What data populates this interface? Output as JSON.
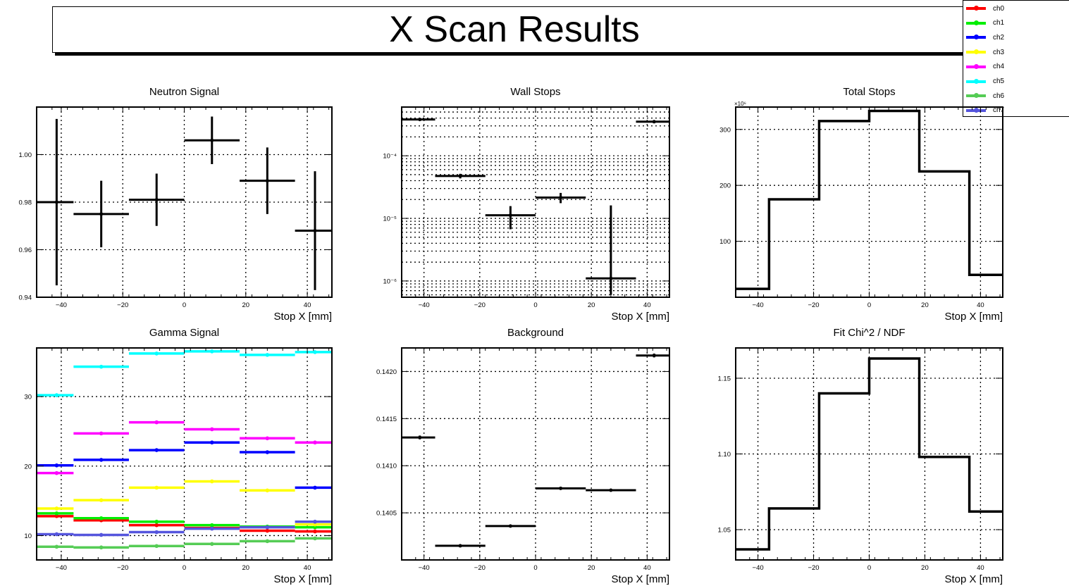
{
  "page_title": "X Scan Results",
  "legend": [
    {
      "label": "ch0",
      "color": "#ff0000"
    },
    {
      "label": "ch1",
      "color": "#00ee00"
    },
    {
      "label": "ch2",
      "color": "#0000ff"
    },
    {
      "label": "ch3",
      "color": "#ffff00"
    },
    {
      "label": "ch4",
      "color": "#ff00ff"
    },
    {
      "label": "ch5",
      "color": "#00ffff"
    },
    {
      "label": "ch6",
      "color": "#55cc55"
    },
    {
      "label": "ch7",
      "color": "#5555dd"
    }
  ],
  "chart_data": [
    {
      "type": "scatter",
      "title": "Neutron Signal",
      "xlabel": "Stop X [mm]",
      "ylabel": "",
      "xlim": [
        -48,
        48
      ],
      "ylim": [
        0.94,
        1.02
      ],
      "yticks": [
        0.94,
        0.96,
        0.98,
        1.0
      ],
      "yticklabels": [
        "0.94",
        "0.96",
        "0.98",
        "1.00"
      ],
      "xticks": [
        -40,
        -20,
        0,
        20,
        40
      ],
      "xticklabels": [
        "−40",
        "−20",
        "0",
        "20",
        "40"
      ],
      "bins": [
        [
          -48,
          -36
        ],
        [
          -36,
          -18
        ],
        [
          -18,
          0
        ],
        [
          0,
          18
        ],
        [
          18,
          36
        ],
        [
          36,
          48
        ]
      ],
      "series": [
        {
          "color": "#000000",
          "x": [
            -41.5,
            -27,
            -9,
            9,
            27,
            42.5
          ],
          "y": [
            0.98,
            0.975,
            0.981,
            1.006,
            0.989,
            0.968
          ],
          "err": [
            0.035,
            0.014,
            0.011,
            0.01,
            0.014,
            0.025
          ]
        }
      ]
    },
    {
      "type": "scatter",
      "title": "Wall Stops",
      "xlabel": "Stop X [mm]",
      "ylabel": "",
      "log": true,
      "xlim": [
        -48,
        48
      ],
      "ylim": [
        5.5e-07,
        0.0006
      ],
      "yticks": [
        1e-06,
        1e-05,
        0.0001
      ],
      "yticklabels": [
        "10⁻⁶",
        "10⁻⁵",
        "10⁻⁴"
      ],
      "xticks": [
        -40,
        -20,
        0,
        20,
        40
      ],
      "xticklabels": [
        "−40",
        "−20",
        "0",
        "20",
        "40"
      ],
      "bins": [
        [
          -48,
          -36
        ],
        [
          -36,
          -18
        ],
        [
          -18,
          0
        ],
        [
          0,
          18
        ],
        [
          18,
          36
        ],
        [
          36,
          48
        ]
      ],
      "series": [
        {
          "color": "#000000",
          "x": [
            -41.5,
            -27,
            -9,
            9,
            27,
            42.5
          ],
          "y": [
            0.00038,
            4.75e-05,
            1.12e-05,
            2.15e-05,
            1.1e-06,
            0.00035
          ],
          "errlo": [
            1e-05,
            4e-06,
            4.5e-06,
            4e-06,
            5e-07,
            1e-05
          ],
          "errhi": [
            1e-05,
            4e-06,
            4.5e-06,
            4e-06,
            1.5e-05,
            1e-05
          ]
        }
      ]
    },
    {
      "type": "line",
      "title": "Total Stops",
      "xlabel": "Stop X [mm]",
      "ylabel": "",
      "multiplier": "×10⁶",
      "xlim": [
        -48,
        48
      ],
      "ylim": [
        0,
        340
      ],
      "yticks": [
        100,
        200,
        300
      ],
      "yticklabels": [
        "100",
        "200",
        "300"
      ],
      "xticks": [
        -40,
        -20,
        0,
        20,
        40
      ],
      "xticklabels": [
        "−40",
        "−20",
        "0",
        "20",
        "40"
      ],
      "bins": [
        [
          -48,
          -36
        ],
        [
          -36,
          -18
        ],
        [
          -18,
          0
        ],
        [
          0,
          18
        ],
        [
          18,
          36
        ],
        [
          36,
          48
        ]
      ],
      "series": [
        {
          "color": "#000000",
          "values": [
            15,
            175,
            315,
            333,
            225,
            40
          ]
        }
      ]
    },
    {
      "type": "scatter",
      "title": "Gamma Signal",
      "xlabel": "Stop X [mm]",
      "ylabel": "",
      "xlim": [
        -48,
        48
      ],
      "ylim": [
        6.5,
        37
      ],
      "yticks": [
        10,
        20,
        30
      ],
      "yticklabels": [
        "10",
        "20",
        "30"
      ],
      "xticks": [
        -40,
        -20,
        0,
        20,
        40
      ],
      "xticklabels": [
        "−40",
        "−20",
        "0",
        "20",
        "40"
      ],
      "bins": [
        [
          -48,
          -36
        ],
        [
          -36,
          -18
        ],
        [
          -18,
          0
        ],
        [
          0,
          18
        ],
        [
          18,
          36
        ],
        [
          36,
          48
        ]
      ],
      "series": [
        {
          "name": "ch0",
          "color": "#ff0000",
          "x": [
            -41.5,
            -27,
            -9,
            9,
            27,
            42.5
          ],
          "y": [
            12.8,
            12.2,
            11.5,
            11.1,
            10.7,
            10.6
          ]
        },
        {
          "name": "ch1",
          "color": "#00ee00",
          "x": [
            -41.5,
            -27,
            -9,
            9,
            27,
            42.5
          ],
          "y": [
            13.2,
            12.5,
            12.0,
            11.5,
            11.3,
            11.2
          ]
        },
        {
          "name": "ch2",
          "color": "#0000ff",
          "x": [
            -41.5,
            -27,
            -9,
            9,
            27,
            42.5
          ],
          "y": [
            20.1,
            20.9,
            22.3,
            23.4,
            22.0,
            16.9
          ]
        },
        {
          "name": "ch3",
          "color": "#ffff00",
          "x": [
            -41.5,
            -27,
            -9,
            9,
            27,
            42.5
          ],
          "y": [
            13.9,
            15.1,
            16.9,
            17.8,
            16.5,
            11.6
          ]
        },
        {
          "name": "ch4",
          "color": "#ff00ff",
          "x": [
            -41.5,
            -27,
            -9,
            9,
            27,
            42.5
          ],
          "y": [
            19.0,
            24.7,
            26.3,
            25.3,
            24.0,
            23.4
          ]
        },
        {
          "name": "ch5",
          "color": "#00ffff",
          "x": [
            -41.5,
            -27,
            -9,
            9,
            27,
            42.5
          ],
          "y": [
            30.2,
            34.3,
            36.2,
            36.5,
            36.0,
            36.4
          ]
        },
        {
          "name": "ch6",
          "color": "#55cc55",
          "x": [
            -41.5,
            -27,
            -9,
            9,
            27,
            42.5
          ],
          "y": [
            8.4,
            8.3,
            8.5,
            8.8,
            9.2,
            9.6
          ]
        },
        {
          "name": "ch7",
          "color": "#5555dd",
          "x": [
            -41.5,
            -27,
            -9,
            9,
            27,
            42.5
          ],
          "y": [
            10.2,
            10.1,
            10.5,
            11.0,
            11.2,
            12.0
          ]
        }
      ]
    },
    {
      "type": "scatter",
      "title": "Background",
      "xlabel": "Stop X [mm]",
      "ylabel": "",
      "xlim": [
        -48,
        48
      ],
      "ylim": [
        0.14,
        0.14225
      ],
      "yticks": [
        0.1405,
        0.141,
        0.1415,
        0.142
      ],
      "yticklabels": [
        "0.1405",
        "0.1410",
        "0.1415",
        "0.1420"
      ],
      "xticks": [
        -40,
        -20,
        0,
        20,
        40
      ],
      "xticklabels": [
        "−40",
        "−20",
        "0",
        "20",
        "40"
      ],
      "bins": [
        [
          -48,
          -36
        ],
        [
          -36,
          -18
        ],
        [
          -18,
          0
        ],
        [
          0,
          18
        ],
        [
          18,
          36
        ],
        [
          36,
          48
        ]
      ],
      "series": [
        {
          "color": "#000000",
          "x": [
            -41.5,
            -27,
            -9,
            9,
            27,
            42.5
          ],
          "y": [
            0.1413,
            0.14015,
            0.14036,
            0.14076,
            0.14074,
            0.14217
          ],
          "err": [
            2e-05,
            5e-06,
            5e-06,
            5e-06,
            5e-06,
            2e-05
          ]
        }
      ]
    },
    {
      "type": "line",
      "title": "Fit Chi^2 / NDF",
      "xlabel": "Stop X [mm]",
      "ylabel": "",
      "xlim": [
        -48,
        48
      ],
      "ylim": [
        1.03,
        1.17
      ],
      "yticks": [
        1.05,
        1.1,
        1.15
      ],
      "yticklabels": [
        "1.05",
        "1.10",
        "1.15"
      ],
      "xticks": [
        -40,
        -20,
        0,
        20,
        40
      ],
      "xticklabels": [
        "−40",
        "−20",
        "0",
        "20",
        "40"
      ],
      "bins": [
        [
          -48,
          -36
        ],
        [
          -36,
          -18
        ],
        [
          -18,
          0
        ],
        [
          0,
          18
        ],
        [
          18,
          36
        ],
        [
          36,
          48
        ]
      ],
      "series": [
        {
          "color": "#000000",
          "values": [
            1.037,
            1.064,
            1.14,
            1.163,
            1.098,
            1.062
          ]
        }
      ]
    }
  ]
}
